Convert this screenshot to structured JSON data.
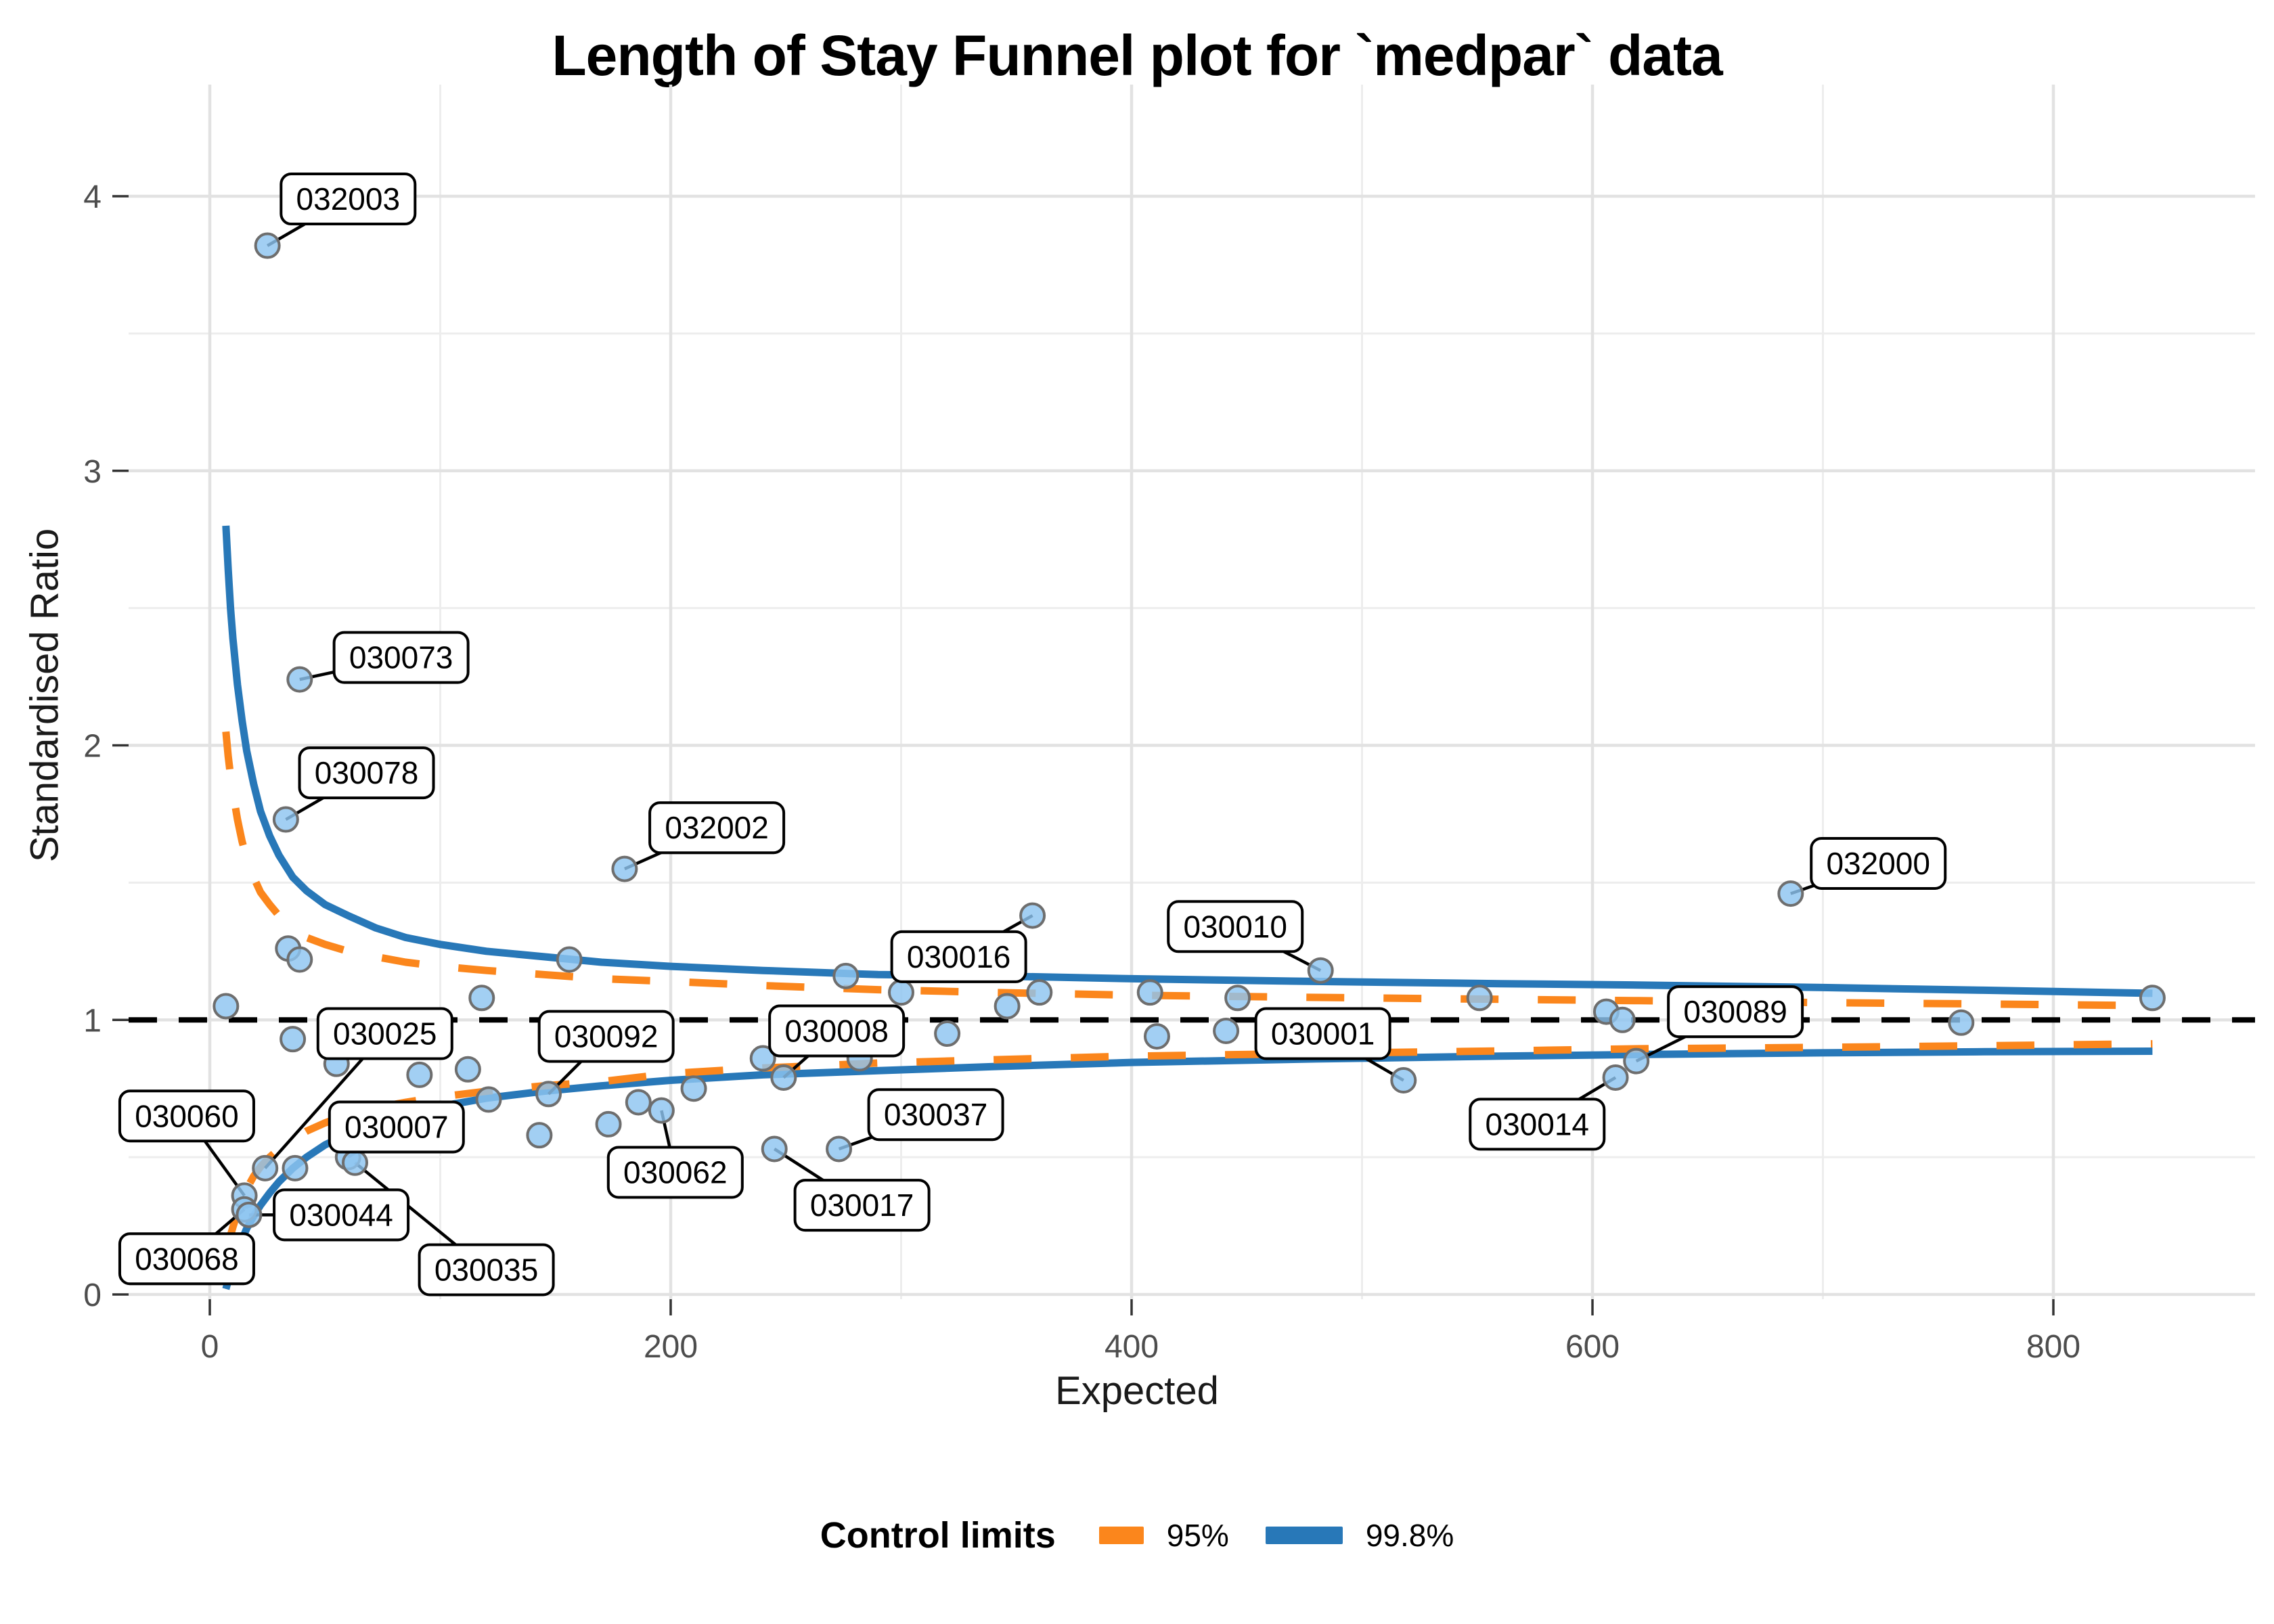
{
  "title": "Length of Stay Funnel plot for `medpar` data",
  "axes": {
    "x_label": "Expected",
    "y_label": "Standardised Ratio",
    "x_ticks": [
      0,
      200,
      400,
      600,
      800
    ],
    "y_ticks": [
      0,
      1,
      2,
      3,
      4
    ]
  },
  "legend": {
    "title": "Control limits",
    "items": [
      {
        "label": "95%",
        "color": "#FB861C",
        "style": "dashed"
      },
      {
        "label": "99.8%",
        "color": "#2878B8",
        "style": "solid"
      }
    ]
  },
  "colors": {
    "limit_95": "#FB861C",
    "limit_99_8": "#2878B8",
    "point_fill": "#8EC5F0",
    "point_stroke": "#6E6E6E",
    "reference_line": "#000000",
    "gridline_major": "#E2E2E2",
    "gridline_minor": "#EDEDED",
    "tick_label": "#4D4D4D",
    "label_box_fill": "#FFFFFF",
    "label_box_border": "#000000"
  },
  "chart_data": {
    "type": "scatter",
    "title": "Length of Stay Funnel plot for `medpar` data",
    "xlabel": "Expected",
    "ylabel": "Standardised Ratio",
    "xlim": [
      -35,
      895
    ],
    "ylim": [
      0,
      4.4
    ],
    "grid": true,
    "legend_position": "bottom",
    "reference_line_y": 1,
    "labeled_points": [
      {
        "id": "032003",
        "x": 25,
        "y": 3.82,
        "lx": 60,
        "ly": 3.99
      },
      {
        "id": "030073",
        "x": 39,
        "y": 2.24,
        "lx": 83,
        "ly": 2.32
      },
      {
        "id": "030078",
        "x": 33,
        "y": 1.73,
        "lx": 68,
        "ly": 1.9
      },
      {
        "id": "032002",
        "x": 180,
        "y": 1.55,
        "lx": 220,
        "ly": 1.7
      },
      {
        "id": "030016",
        "x": 357,
        "y": 1.38,
        "lx": 325,
        "ly": 1.23
      },
      {
        "id": "030010",
        "x": 482,
        "y": 1.18,
        "lx": 445,
        "ly": 1.34
      },
      {
        "id": "032000",
        "x": 686,
        "y": 1.46,
        "lx": 724,
        "ly": 1.57
      },
      {
        "id": "030025",
        "x": 24,
        "y": 0.46,
        "lx": 76,
        "ly": 0.95
      },
      {
        "id": "030092",
        "x": 147,
        "y": 0.73,
        "lx": 172,
        "ly": 0.94
      },
      {
        "id": "030008",
        "x": 249,
        "y": 0.79,
        "lx": 272,
        "ly": 0.96
      },
      {
        "id": "030001",
        "x": 518,
        "y": 0.78,
        "lx": 483,
        "ly": 0.95
      },
      {
        "id": "030089",
        "x": 619,
        "y": 0.85,
        "lx": 662,
        "ly": 1.03
      },
      {
        "id": "030014",
        "x": 610,
        "y": 0.79,
        "lx": 576,
        "ly": 0.62
      },
      {
        "id": "030060",
        "x": 15,
        "y": 0.36,
        "lx": -10,
        "ly": 0.65
      },
      {
        "id": "030068",
        "x": 15,
        "y": 0.31,
        "lx": -10,
        "ly": 0.13
      },
      {
        "id": "030044",
        "x": 17,
        "y": 0.29,
        "lx": 57,
        "ly": 0.29
      },
      {
        "id": "030007",
        "x": 60,
        "y": 0.5,
        "lx": 81,
        "ly": 0.61
      },
      {
        "id": "030035",
        "x": 63,
        "y": 0.48,
        "lx": 120,
        "ly": 0.09
      },
      {
        "id": "030062",
        "x": 196,
        "y": 0.67,
        "lx": 202,
        "ly": 0.445
      },
      {
        "id": "030017",
        "x": 245,
        "y": 0.53,
        "lx": 283,
        "ly": 0.325
      },
      {
        "id": "030037",
        "x": 273,
        "y": 0.53,
        "lx": 315,
        "ly": 0.655
      }
    ],
    "unlabeled_points": [
      [
        7,
        1.05
      ],
      [
        34,
        1.26
      ],
      [
        39,
        1.22
      ],
      [
        36,
        0.93
      ],
      [
        55,
        0.84
      ],
      [
        37,
        0.46
      ],
      [
        91,
        0.8
      ],
      [
        112,
        0.82
      ],
      [
        118,
        1.08
      ],
      [
        121,
        0.71
      ],
      [
        143,
        0.58
      ],
      [
        156,
        1.22
      ],
      [
        173,
        0.62
      ],
      [
        186,
        0.7
      ],
      [
        210,
        0.75
      ],
      [
        240,
        0.86
      ],
      [
        282,
        0.86
      ],
      [
        276,
        1.16
      ],
      [
        300,
        1.1
      ],
      [
        320,
        0.95
      ],
      [
        346,
        1.05
      ],
      [
        360,
        1.1
      ],
      [
        408,
        1.1
      ],
      [
        411,
        0.94
      ],
      [
        441,
        0.96
      ],
      [
        446,
        1.08
      ],
      [
        551,
        1.08
      ],
      [
        606,
        1.03
      ],
      [
        613,
        1.0
      ],
      [
        760,
        0.99
      ],
      [
        843,
        1.08
      ]
    ],
    "control_limits": {
      "upper_99_8": [
        [
          7,
          2.8
        ],
        [
          8,
          2.64
        ],
        [
          9,
          2.5
        ],
        [
          10,
          2.39
        ],
        [
          12,
          2.22
        ],
        [
          14,
          2.09
        ],
        [
          16,
          1.98
        ],
        [
          19,
          1.86
        ],
        [
          22,
          1.76
        ],
        [
          26,
          1.67
        ],
        [
          30,
          1.6
        ],
        [
          36,
          1.52
        ],
        [
          42,
          1.47
        ],
        [
          50,
          1.42
        ],
        [
          60,
          1.38
        ],
        [
          72,
          1.335
        ],
        [
          85,
          1.3
        ],
        [
          100,
          1.275
        ],
        [
          120,
          1.25
        ],
        [
          145,
          1.23
        ],
        [
          170,
          1.21
        ],
        [
          200,
          1.195
        ],
        [
          240,
          1.18
        ],
        [
          290,
          1.165
        ],
        [
          340,
          1.16
        ],
        [
          400,
          1.15
        ],
        [
          480,
          1.14
        ],
        [
          560,
          1.132
        ],
        [
          620,
          1.127
        ],
        [
          700,
          1.118
        ],
        [
          770,
          1.108
        ],
        [
          843,
          1.097
        ]
      ],
      "lower_99_8": [
        [
          7,
          0.02
        ],
        [
          8,
          0.05
        ],
        [
          9,
          0.08
        ],
        [
          10,
          0.11
        ],
        [
          12,
          0.16
        ],
        [
          14,
          0.2
        ],
        [
          16,
          0.24
        ],
        [
          19,
          0.285
        ],
        [
          22,
          0.325
        ],
        [
          26,
          0.37
        ],
        [
          30,
          0.41
        ],
        [
          36,
          0.46
        ],
        [
          42,
          0.5
        ],
        [
          50,
          0.545
        ],
        [
          60,
          0.585
        ],
        [
          72,
          0.625
        ],
        [
          85,
          0.655
        ],
        [
          100,
          0.685
        ],
        [
          120,
          0.715
        ],
        [
          145,
          0.74
        ],
        [
          170,
          0.76
        ],
        [
          200,
          0.78
        ],
        [
          240,
          0.8
        ],
        [
          290,
          0.815
        ],
        [
          340,
          0.83
        ],
        [
          400,
          0.845
        ],
        [
          480,
          0.858
        ],
        [
          560,
          0.868
        ],
        [
          620,
          0.874
        ],
        [
          700,
          0.88
        ],
        [
          770,
          0.884
        ],
        [
          843,
          0.886
        ]
      ],
      "upper_95": [
        [
          7,
          2.05
        ],
        [
          8,
          1.96
        ],
        [
          9,
          1.89
        ],
        [
          10,
          1.83
        ],
        [
          12,
          1.73
        ],
        [
          14,
          1.65
        ],
        [
          16,
          1.59
        ],
        [
          19,
          1.52
        ],
        [
          22,
          1.465
        ],
        [
          26,
          1.42
        ],
        [
          30,
          1.38
        ],
        [
          36,
          1.335
        ],
        [
          42,
          1.3
        ],
        [
          50,
          1.275
        ],
        [
          60,
          1.25
        ],
        [
          72,
          1.23
        ],
        [
          85,
          1.21
        ],
        [
          100,
          1.195
        ],
        [
          120,
          1.18
        ],
        [
          145,
          1.165
        ],
        [
          170,
          1.15
        ],
        [
          200,
          1.14
        ],
        [
          240,
          1.125
        ],
        [
          290,
          1.11
        ],
        [
          340,
          1.1
        ],
        [
          400,
          1.09
        ],
        [
          480,
          1.082
        ],
        [
          560,
          1.075
        ],
        [
          620,
          1.07
        ],
        [
          700,
          1.063
        ],
        [
          770,
          1.058
        ],
        [
          843,
          1.052
        ]
      ],
      "lower_95": [
        [
          7,
          0.14
        ],
        [
          8,
          0.18
        ],
        [
          9,
          0.215
        ],
        [
          10,
          0.245
        ],
        [
          12,
          0.3
        ],
        [
          14,
          0.345
        ],
        [
          16,
          0.385
        ],
        [
          19,
          0.43
        ],
        [
          22,
          0.465
        ],
        [
          26,
          0.5
        ],
        [
          30,
          0.53
        ],
        [
          36,
          0.565
        ],
        [
          42,
          0.595
        ],
        [
          50,
          0.625
        ],
        [
          60,
          0.655
        ],
        [
          72,
          0.68
        ],
        [
          85,
          0.7
        ],
        [
          100,
          0.72
        ],
        [
          120,
          0.74
        ],
        [
          145,
          0.76
        ],
        [
          170,
          0.775
        ],
        [
          200,
          0.805
        ],
        [
          240,
          0.825
        ],
        [
          290,
          0.843
        ],
        [
          340,
          0.855
        ],
        [
          400,
          0.868
        ],
        [
          480,
          0.878
        ],
        [
          560,
          0.887
        ],
        [
          620,
          0.895
        ],
        [
          700,
          0.9
        ],
        [
          770,
          0.906
        ],
        [
          843,
          0.913
        ]
      ]
    }
  }
}
